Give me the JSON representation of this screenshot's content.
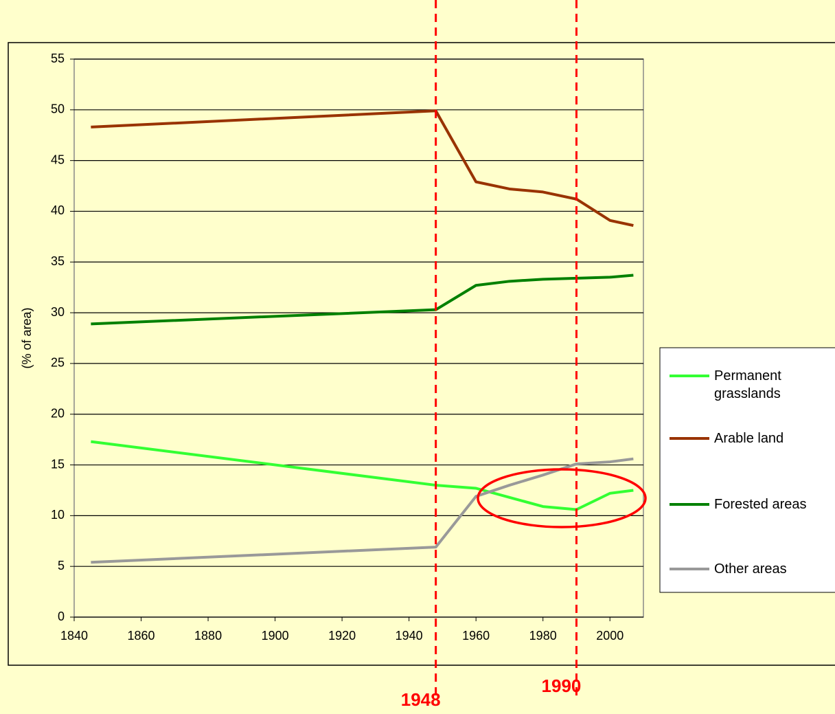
{
  "chart_data": {
    "type": "line",
    "ylabel": "(% of area)",
    "x": [
      1845,
      1948,
      1960,
      1970,
      1980,
      1990,
      2000,
      2007
    ],
    "series": [
      {
        "name": "Permanent grasslands",
        "color": "#33ff33",
        "values": [
          17.3,
          13.0,
          12.7,
          11.8,
          10.9,
          10.6,
          12.2,
          12.5
        ]
      },
      {
        "name": "Arable land",
        "color": "#993300",
        "values": [
          48.3,
          49.9,
          42.9,
          42.2,
          41.9,
          41.2,
          39.1,
          38.6
        ]
      },
      {
        "name": "Forested areas",
        "color": "#008000",
        "values": [
          28.9,
          30.3,
          32.7,
          33.1,
          33.3,
          33.4,
          33.5,
          33.7
        ]
      },
      {
        "name": "Other areas",
        "color": "#999999",
        "values": [
          5.4,
          6.9,
          11.9,
          13.0,
          14.0,
          15.1,
          15.3,
          15.6
        ]
      }
    ],
    "xlim": [
      1840,
      2010
    ],
    "xticks": [
      1840,
      1860,
      1880,
      1900,
      1920,
      1940,
      1960,
      1980,
      2000
    ],
    "ylim": [
      0,
      55
    ],
    "yticks": [
      0,
      5,
      10,
      15,
      20,
      25,
      30,
      35,
      40,
      45,
      50,
      55
    ],
    "grid": true,
    "legend": "right",
    "marker_years": [
      1948,
      1990
    ]
  }
}
